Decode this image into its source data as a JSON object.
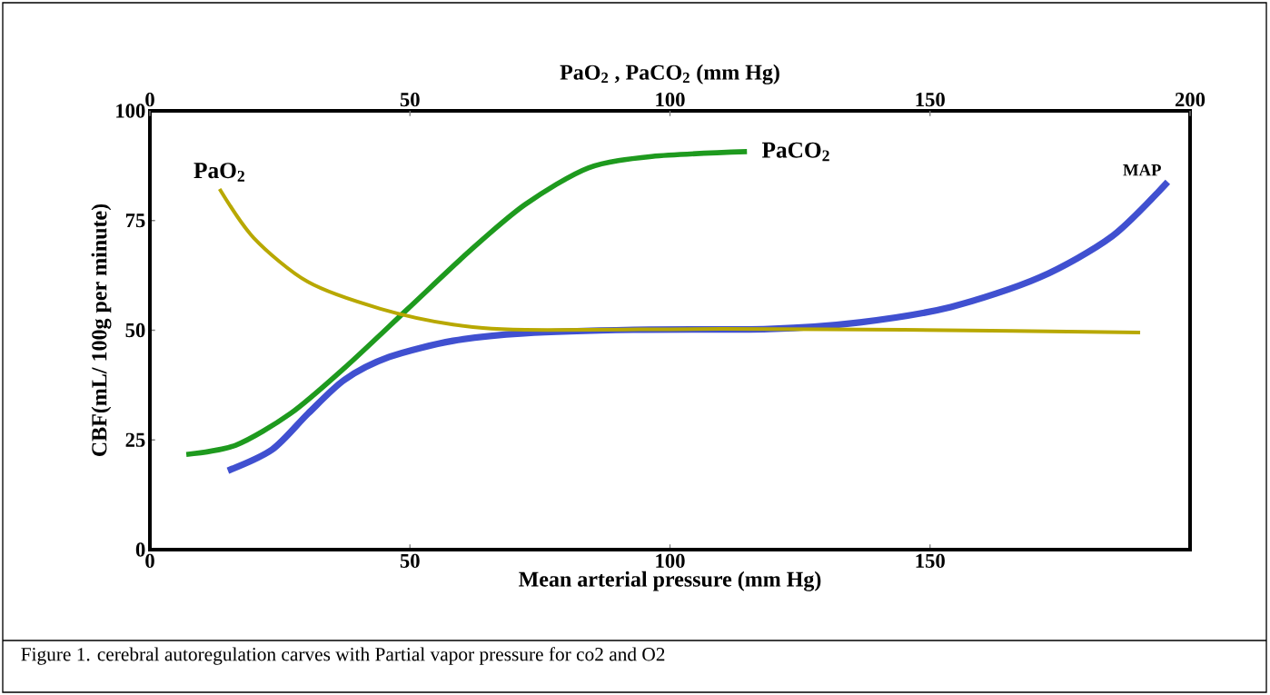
{
  "chart_data": {
    "type": "line",
    "xlabel": "Mean arterial pressure (mm Hg)",
    "x2label": "PaO$_{2}$ , PaCO$_{2}$ (mm Hg)",
    "ylabel": "CBF(mL/ 100g per minute)",
    "xlim": [
      0,
      200
    ],
    "xticks": [
      0,
      50,
      100,
      150
    ],
    "x2lim": [
      0,
      200
    ],
    "x2ticks": [
      0,
      50,
      100,
      150,
      200
    ],
    "ylim": [
      0,
      100
    ],
    "yticks": [
      0,
      25,
      50,
      75,
      100
    ],
    "annotations": [
      "Figure 1. cerebral autoregulation carves with Partial vapor pressure for co2 and O2"
    ],
    "series": [
      {
        "name": "MAP",
        "color": "#4050d0",
        "x": [
          15,
          23.5,
          30.4,
          37.4,
          46,
          58.3,
          72,
          93,
          119,
          136.5,
          154,
          171,
          185,
          195.7
        ],
        "values": [
          18,
          22.8,
          31,
          38.7,
          43.9,
          47.6,
          49.3,
          50.1,
          50.3,
          51.8,
          55.3,
          62,
          71.4,
          83.8
        ]
      },
      {
        "name": "PaCO$_{2}$",
        "color": "#1e9a1e",
        "axis": "x2",
        "x": [
          7,
          16.5,
          27,
          37.4,
          49.6,
          61.7,
          72.2,
          84.3,
          96.5,
          114.8
        ],
        "values": [
          21.7,
          23.8,
          31,
          41.4,
          54.9,
          68.3,
          78.7,
          87,
          89.6,
          90.7
        ]
      },
      {
        "name": "PaO$_{2}$",
        "color": "#b8a800",
        "axis": "x2",
        "x": [
          13.4,
          20,
          30.4,
          44.3,
          58.3,
          72.2,
          110,
          145,
          190.4
        ],
        "values": [
          82.2,
          71,
          61,
          54.9,
          51.3,
          50.1,
          50.3,
          50.1,
          49.5
        ]
      }
    ]
  }
}
